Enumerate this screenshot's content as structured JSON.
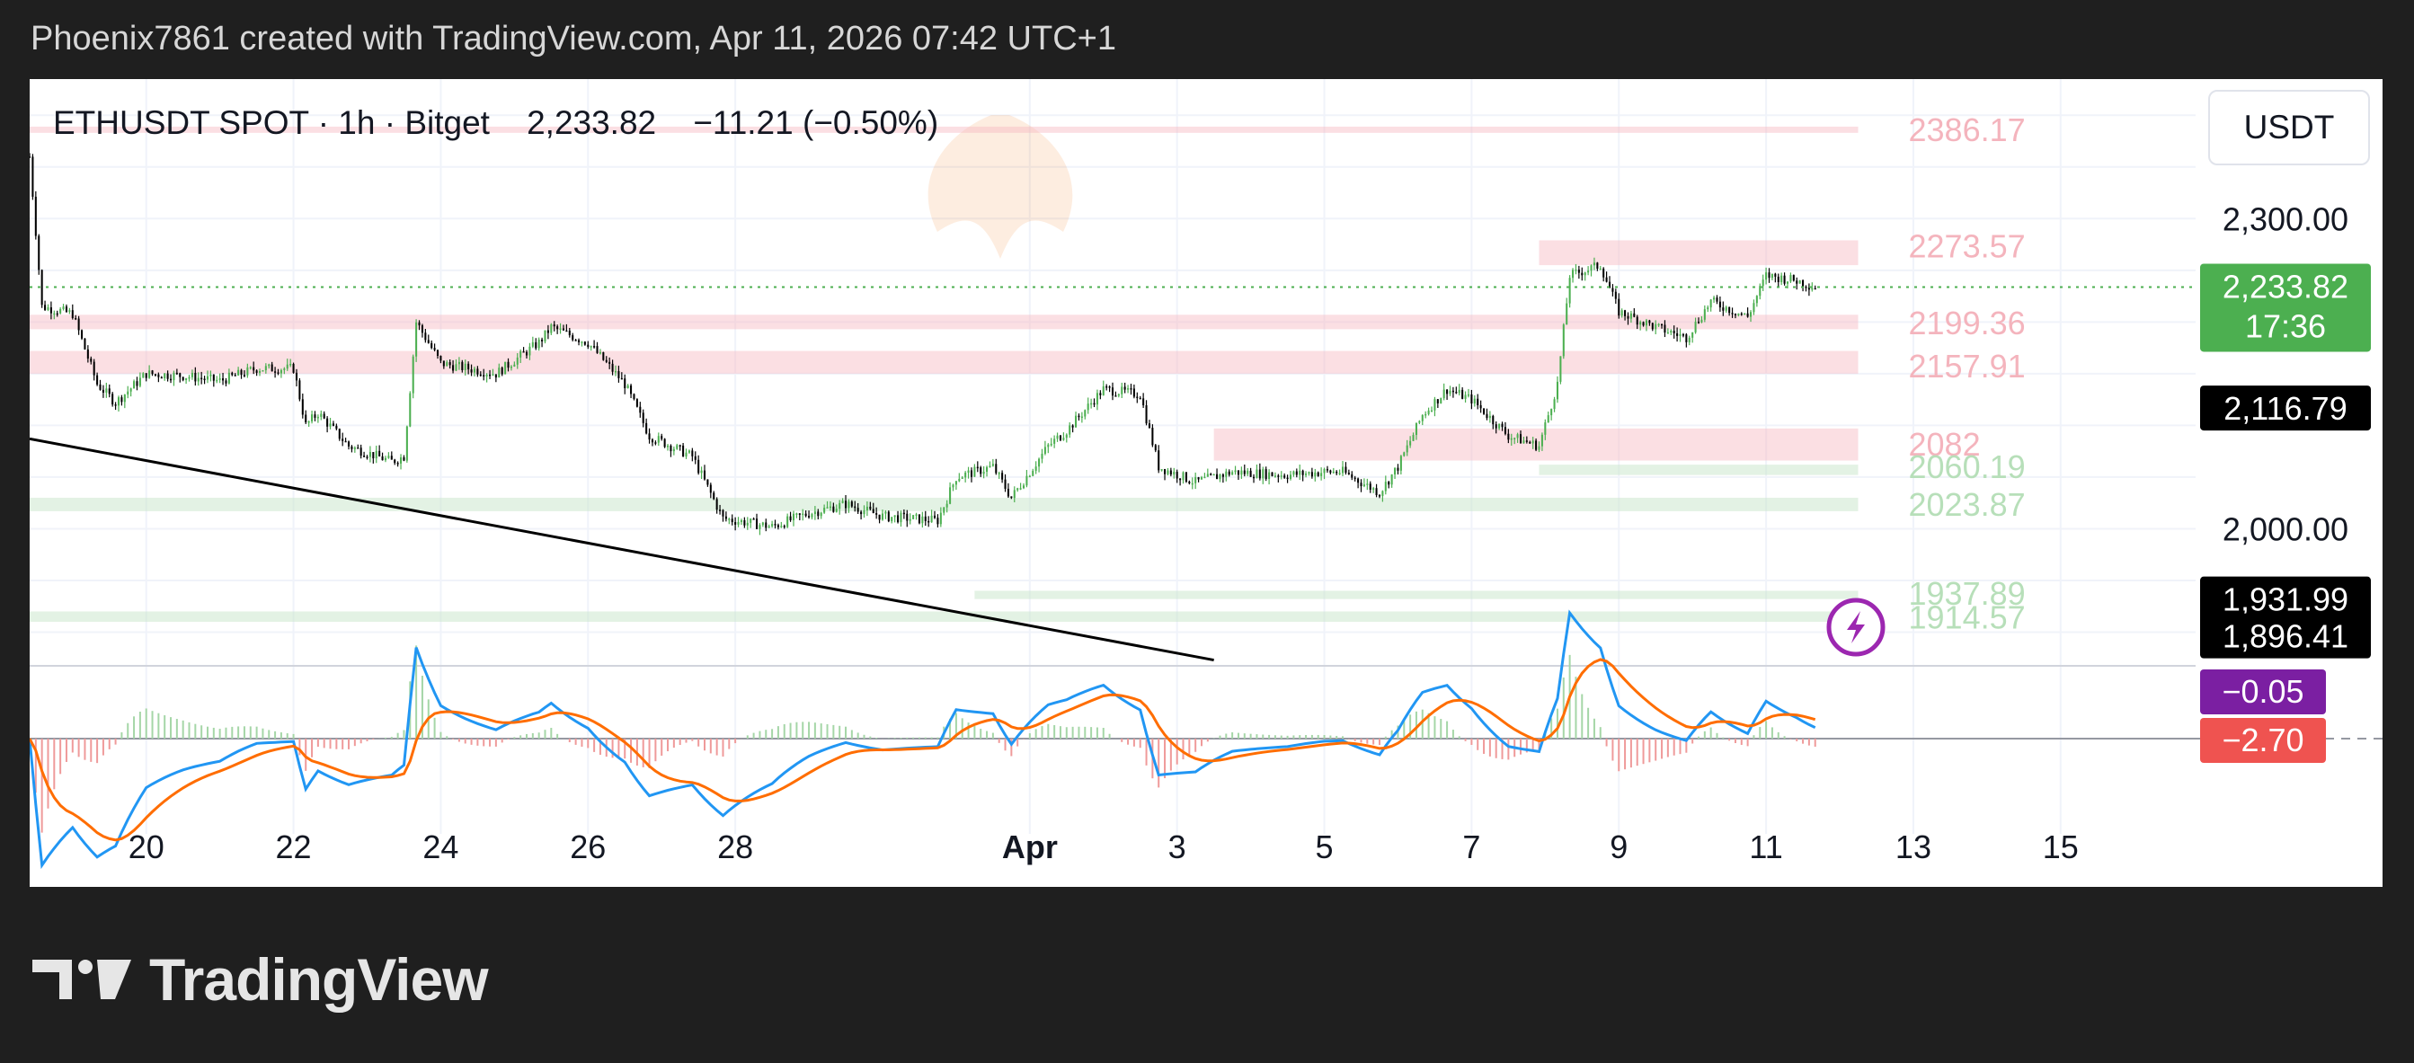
{
  "header": {
    "attribution": "Phoenix7861 created with TradingView.com, Apr 11, 2026 07:42 UTC+1"
  },
  "symbol": {
    "name": "ETHUSDT SPOT",
    "sep1": "·",
    "interval": "1h",
    "sep2": "·",
    "exchange": "Bitget",
    "last": "2,233.82",
    "change": "−11.21 (−0.50%)"
  },
  "currency_label": "USDT",
  "footer": {
    "brand": "TradingView"
  },
  "colors": {
    "up": "#4caf50",
    "down": "#000000",
    "resistance_zone": "#f7b9c0",
    "support_zone": "#c8e6c9",
    "macd_line": "#2196f3",
    "signal_line": "#ff6d00",
    "price_badge": "#4caf50",
    "macd_badge": "#7b1fa2",
    "signal_badge": "#ef5350"
  },
  "chart_data": {
    "type": "candlestick",
    "x_tick_labels": [
      "20",
      "22",
      "24",
      "26",
      "28",
      "Apr",
      "3",
      "5",
      "7",
      "9",
      "11",
      "13",
      "15"
    ],
    "x_tick_dates": [
      "2026-03-20",
      "2026-03-22",
      "2026-03-24",
      "2026-03-26",
      "2026-03-28",
      "2026-04-01",
      "2026-04-03",
      "2026-04-05",
      "2026-04-07",
      "2026-04-09",
      "2026-04-11",
      "2026-04-13",
      "2026-04-15"
    ],
    "x_range": [
      "2026-03-18T10:00",
      "2026-04-16T20:00"
    ],
    "y_tick_labels": [
      "2,300.00",
      "2,000.00"
    ],
    "y_range": [
      1870,
      2435
    ],
    "price_path": [
      [
        "2026-03-18T10:00",
        2360
      ],
      [
        "2026-03-18T14:00",
        2215
      ],
      [
        "2026-03-19T00:00",
        2208
      ],
      [
        "2026-03-19T08:00",
        2140
      ],
      [
        "2026-03-19T14:00",
        2122
      ],
      [
        "2026-03-20T00:00",
        2150
      ],
      [
        "2026-03-20T12:00",
        2148
      ],
      [
        "2026-03-21T00:00",
        2143
      ],
      [
        "2026-03-21T12:00",
        2155
      ],
      [
        "2026-03-22T00:00",
        2155
      ],
      [
        "2026-03-22T04:00",
        2100
      ],
      [
        "2026-03-22T08:00",
        2112
      ],
      [
        "2026-03-22T18:00",
        2080
      ],
      [
        "2026-03-23T08:00",
        2065
      ],
      [
        "2026-03-23T12:00",
        2070
      ],
      [
        "2026-03-23T16:00",
        2200
      ],
      [
        "2026-03-24T00:00",
        2160
      ],
      [
        "2026-03-24T18:00",
        2150
      ],
      [
        "2026-03-25T08:00",
        2180
      ],
      [
        "2026-03-25T12:00",
        2195
      ],
      [
        "2026-03-26T00:00",
        2180
      ],
      [
        "2026-03-26T12:00",
        2140
      ],
      [
        "2026-03-26T20:00",
        2090
      ],
      [
        "2026-03-27T10:00",
        2070
      ],
      [
        "2026-03-27T20:00",
        2010
      ],
      [
        "2026-03-28T12:00",
        2002
      ],
      [
        "2026-03-29T00:00",
        2015
      ],
      [
        "2026-03-29T12:00",
        2024
      ],
      [
        "2026-03-30T00:00",
        2012
      ],
      [
        "2026-03-30T18:00",
        2008
      ],
      [
        "2026-03-31T00:00",
        2050
      ],
      [
        "2026-03-31T12:00",
        2060
      ],
      [
        "2026-03-31T18:00",
        2030
      ],
      [
        "2026-04-01T06:00",
        2080
      ],
      [
        "2026-04-01T12:00",
        2095
      ],
      [
        "2026-04-02T00:00",
        2135
      ],
      [
        "2026-04-02T12:00",
        2130
      ],
      [
        "2026-04-02T18:00",
        2060
      ],
      [
        "2026-04-03T06:00",
        2045
      ],
      [
        "2026-04-03T18:00",
        2055
      ],
      [
        "2026-04-04T12:00",
        2052
      ],
      [
        "2026-04-05T00:00",
        2055
      ],
      [
        "2026-04-05T06:00",
        2055
      ],
      [
        "2026-04-05T18:00",
        2035
      ],
      [
        "2026-04-06T00:00",
        2060
      ],
      [
        "2026-04-06T08:00",
        2110
      ],
      [
        "2026-04-06T16:00",
        2135
      ],
      [
        "2026-04-07T00:00",
        2125
      ],
      [
        "2026-04-07T12:00",
        2090
      ],
      [
        "2026-04-07T22:00",
        2080
      ],
      [
        "2026-04-08T04:00",
        2140
      ],
      [
        "2026-04-08T08:00",
        2245
      ],
      [
        "2026-04-08T18:00",
        2255
      ],
      [
        "2026-04-09T00:00",
        2210
      ],
      [
        "2026-04-09T12:00",
        2195
      ],
      [
        "2026-04-09T22:00",
        2185
      ],
      [
        "2026-04-10T06:00",
        2220
      ],
      [
        "2026-04-10T18:00",
        2205
      ],
      [
        "2026-04-11T00:00",
        2245
      ],
      [
        "2026-04-11T10:00",
        2240
      ],
      [
        "2026-04-11T16:00",
        2233.82
      ]
    ],
    "last_price": 2233.82,
    "last_price_label": "2,233.82",
    "countdown": "17:36",
    "price_scale_badges": [
      {
        "label": "2,116.79",
        "value": 2116.79
      },
      {
        "label": "1,931.99",
        "value": 1931.99
      },
      {
        "label": "1,896.41",
        "value": 1896.41
      }
    ],
    "level_labels": [
      {
        "label": "2386.17",
        "value": 2386.17,
        "kind": "resistance"
      },
      {
        "label": "2273.57",
        "value": 2273.57,
        "kind": "resistance"
      },
      {
        "label": "2199.36",
        "value": 2199.36,
        "kind": "resistance"
      },
      {
        "label": "2157.91",
        "value": 2157.91,
        "kind": "resistance"
      },
      {
        "label": "2082",
        "value": 2082,
        "kind": "resistance"
      },
      {
        "label": "2060.19",
        "value": 2060.19,
        "kind": "support"
      },
      {
        "label": "2023.87",
        "value": 2023.87,
        "kind": "support"
      },
      {
        "label": "1937.89",
        "value": 1937.89,
        "kind": "support"
      },
      {
        "label": "1914.57",
        "value": 1914.57,
        "kind": "support"
      }
    ],
    "zones": [
      {
        "kind": "resistance",
        "from": "2026-03-18T10:00",
        "to": "2026-04-12T06:00",
        "low": 2383,
        "high": 2389
      },
      {
        "kind": "resistance",
        "from": "2026-04-07T22:00",
        "to": "2026-04-12T06:00",
        "low": 2255,
        "high": 2279
      },
      {
        "kind": "resistance",
        "from": "2026-03-18T10:00",
        "to": "2026-04-12T06:00",
        "low": 2193,
        "high": 2207
      },
      {
        "kind": "resistance",
        "from": "2026-03-18T10:00",
        "to": "2026-04-12T06:00",
        "low": 2150,
        "high": 2172
      },
      {
        "kind": "resistance",
        "from": "2026-04-03T12:00",
        "to": "2026-04-12T06:00",
        "low": 2066,
        "high": 2097
      },
      {
        "kind": "support",
        "from": "2026-04-07T22:00",
        "to": "2026-04-12T06:00",
        "low": 2052,
        "high": 2062
      },
      {
        "kind": "support",
        "from": "2026-03-18T10:00",
        "to": "2026-04-12T06:00",
        "low": 2017,
        "high": 2030
      },
      {
        "kind": "support",
        "from": "2026-03-31T06:00",
        "to": "2026-04-12T06:00",
        "low": 1932,
        "high": 1940
      },
      {
        "kind": "support",
        "from": "2026-03-18T10:00",
        "to": "2026-04-12T06:00",
        "low": 1910,
        "high": 1920
      }
    ],
    "trendline": {
      "from": [
        "2026-03-18T10:00",
        2087
      ],
      "to": [
        "2026-04-03T12:00",
        1873
      ]
    },
    "macd": {
      "macd_value_label": "−0.05",
      "signal_value_label": "−2.70",
      "zero_line": true,
      "note": "MACD (blue) and signal (orange) oscillating around zero line"
    },
    "grid": true
  }
}
